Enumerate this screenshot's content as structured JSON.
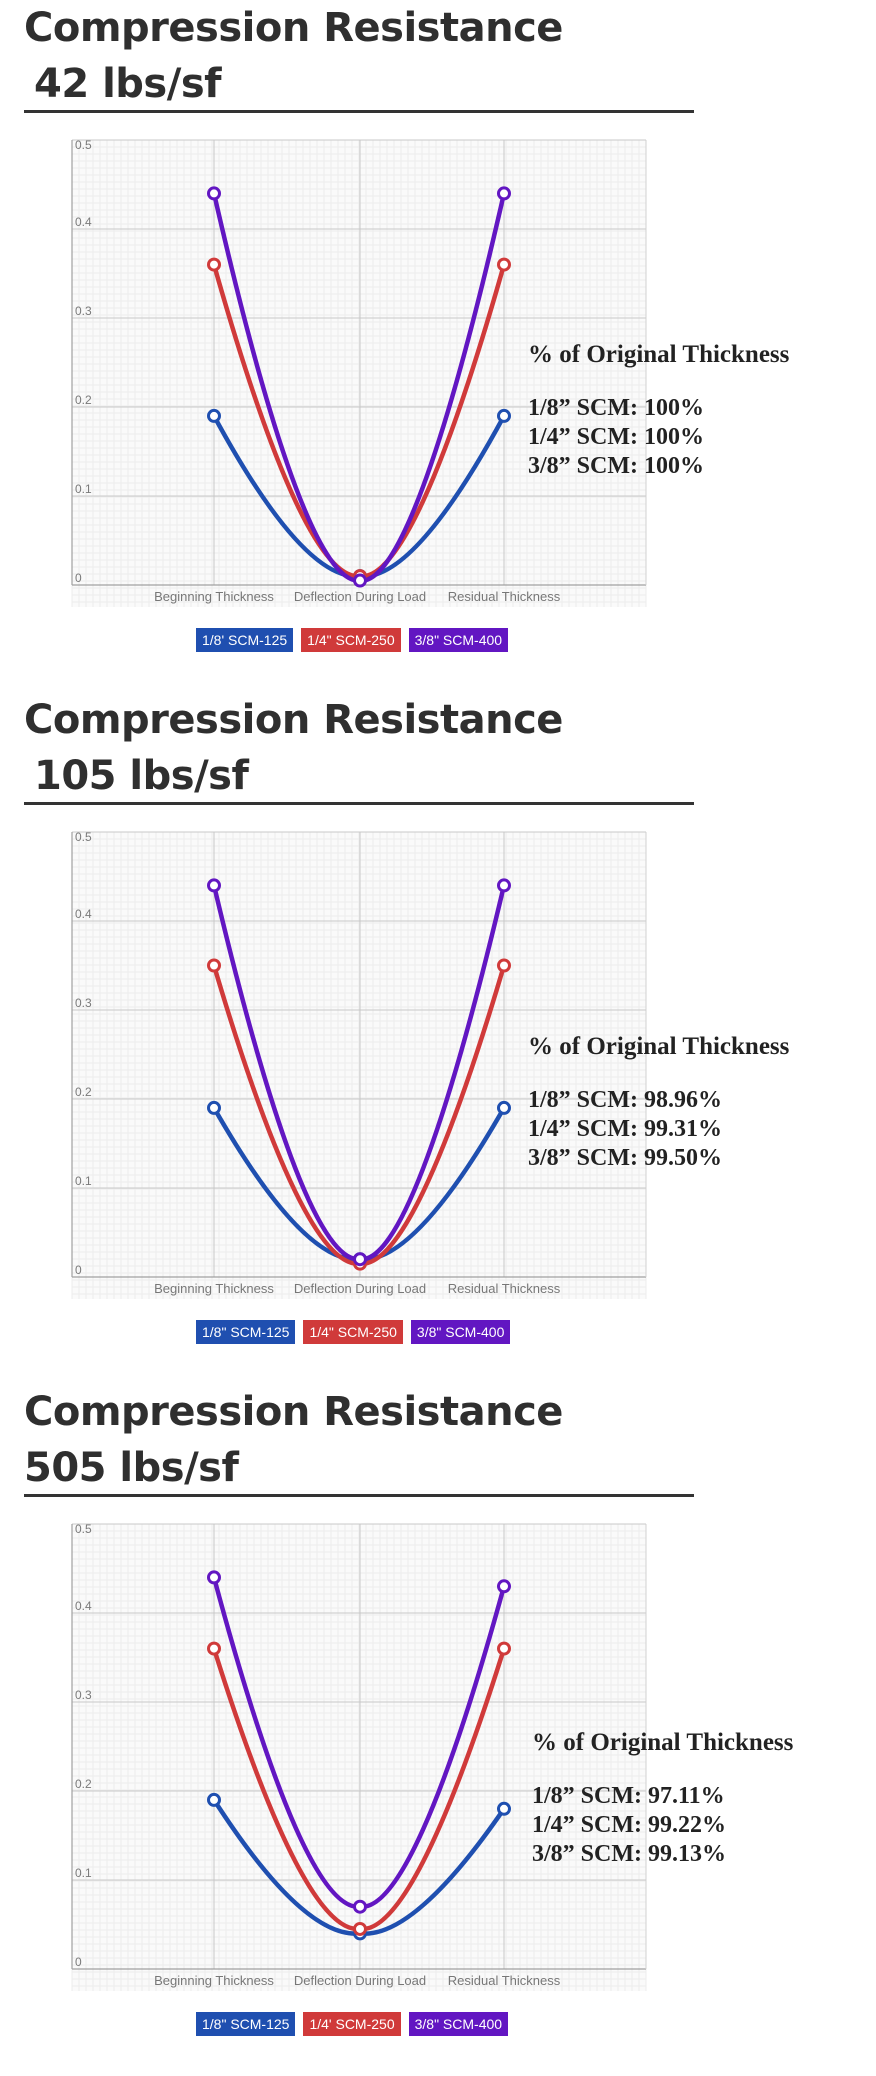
{
  "chart_data": [
    {
      "type": "line",
      "title": "Compression Resistance",
      "subtitle": "42 lbs/sf",
      "categories": [
        "Beginning Thickness",
        "Deflection During Load",
        "Residual Thickness"
      ],
      "ylim": [
        0,
        0.5
      ],
      "yticks": [
        "0",
        "0.1",
        "0.2",
        "0.3",
        "0.4",
        "0.5"
      ],
      "grid": true,
      "legend_position": "bottom",
      "series": [
        {
          "name": "1/8' SCM-125",
          "color": "#1f4fb0",
          "values": [
            0.19,
            0.01,
            0.19
          ]
        },
        {
          "name": "1/4\" SCM-250",
          "color": "#d03a3a",
          "values": [
            0.36,
            0.01,
            0.36
          ]
        },
        {
          "name": "3/8\" SCM-400",
          "color": "#6216c2",
          "values": [
            0.44,
            0.005,
            0.44
          ]
        }
      ],
      "annotation": {
        "title": "% of Original Thickness",
        "lines": [
          "1/8” SCM: 100%",
          "1/4” SCM: 100%",
          "3/8” SCM: 100%"
        ]
      }
    },
    {
      "type": "line",
      "title": "Compression Resistance",
      "subtitle": "105 lbs/sf",
      "categories": [
        "Beginning Thickness",
        "Deflection During Load",
        "Residual Thickness"
      ],
      "ylim": [
        0,
        0.5
      ],
      "yticks": [
        "0",
        "0.1",
        "0.2",
        "0.3",
        "0.4",
        "0.5"
      ],
      "grid": true,
      "legend_position": "bottom",
      "series": [
        {
          "name": "1/8\" SCM-125",
          "color": "#1f4fb0",
          "values": [
            0.19,
            0.02,
            0.19
          ]
        },
        {
          "name": "1/4\" SCM-250",
          "color": "#d03a3a",
          "values": [
            0.35,
            0.015,
            0.35
          ]
        },
        {
          "name": "3/8\" SCM-400",
          "color": "#6216c2",
          "values": [
            0.44,
            0.02,
            0.44
          ]
        }
      ],
      "annotation": {
        "title": "% of Original Thickness",
        "lines": [
          "1/8” SCM: 98.96%",
          "1/4” SCM: 99.31%",
          "3/8” SCM: 99.50%"
        ]
      }
    },
    {
      "type": "line",
      "title": "Compression Resistance",
      "subtitle": "505 lbs/sf",
      "categories": [
        "Beginning Thickness",
        "Deflection During Load",
        "Residual Thickness"
      ],
      "ylim": [
        0,
        0.5
      ],
      "yticks": [
        "0",
        "0.1",
        "0.2",
        "0.3",
        "0.4",
        "0.5"
      ],
      "grid": true,
      "legend_position": "bottom",
      "series": [
        {
          "name": "1/8\" SCM-125",
          "color": "#1f4fb0",
          "values": [
            0.19,
            0.04,
            0.18
          ]
        },
        {
          "name": "1/4' SCM-250",
          "color": "#d03a3a",
          "values": [
            0.36,
            0.045,
            0.36
          ]
        },
        {
          "name": "3/8\" SCM-400",
          "color": "#6216c2",
          "values": [
            0.44,
            0.07,
            0.43
          ]
        }
      ],
      "annotation": {
        "title": "% of Original Thickness",
        "lines": [
          "1/8” SCM: 97.11%",
          "1/4” SCM: 99.22%",
          "3/8” SCM: 99.13%"
        ]
      }
    }
  ]
}
